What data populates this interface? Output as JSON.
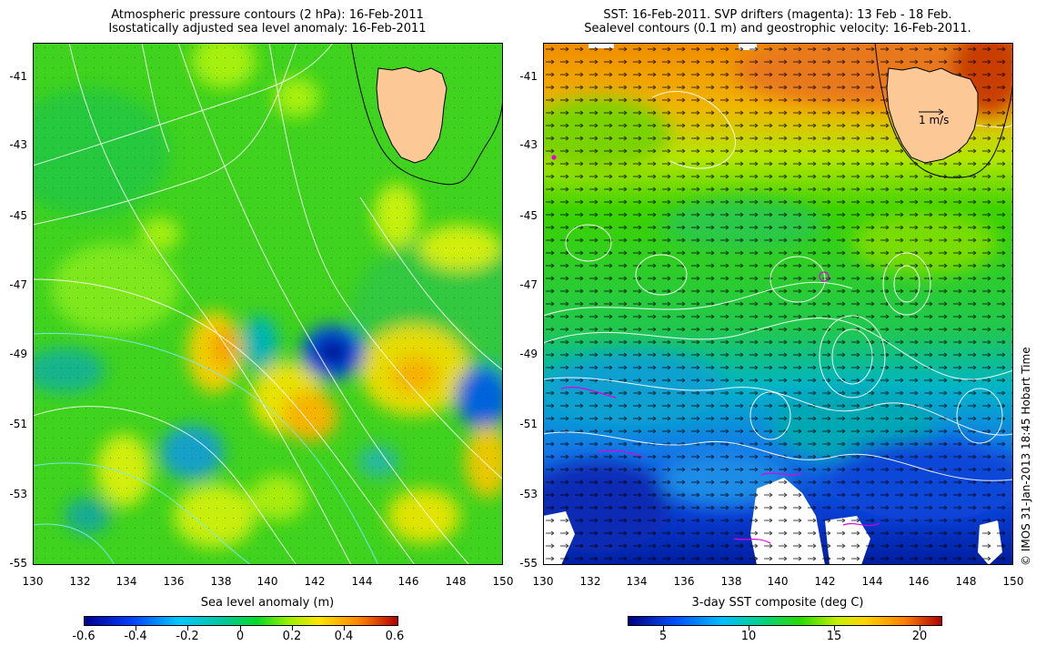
{
  "left_panel": {
    "title_line1": "Atmospheric pressure contours (2 hPa): 16-Feb-2011",
    "title_line2": "Isostatically adjusted sea level anomaly: 16-Feb-2011",
    "colorbar_label": "Sea level anomaly (m)",
    "colorbar_ticks": [
      "-0.6",
      "-0.4",
      "-0.2",
      "0",
      "0.2",
      "0.4",
      "0.6"
    ]
  },
  "right_panel": {
    "title_line1": "SST: 16-Feb-2011. SVP drifters (magenta): 13 Feb - 18 Feb.",
    "title_line2": "Sealevel contours (0.1 m) and geostrophic velocity: 16-Feb-2011.",
    "colorbar_label": "3-day SST composite (deg C)",
    "colorbar_ticks": [
      "5",
      "10",
      "15",
      "20"
    ],
    "velocity_scale_label": "1 m/s"
  },
  "axes": {
    "x_ticks": [
      "130",
      "132",
      "134",
      "136",
      "138",
      "140",
      "142",
      "144",
      "146",
      "148",
      "150"
    ],
    "y_ticks": [
      "-41",
      "-43",
      "-45",
      "-47",
      "-49",
      "-51",
      "-53",
      "-55"
    ]
  },
  "credit": "© IMOS 31-Jan-2013 18:45 Hobart Time",
  "colors": {
    "land": "#fcc896",
    "contour": "#ffffff",
    "drifter": "#e000e0"
  }
}
